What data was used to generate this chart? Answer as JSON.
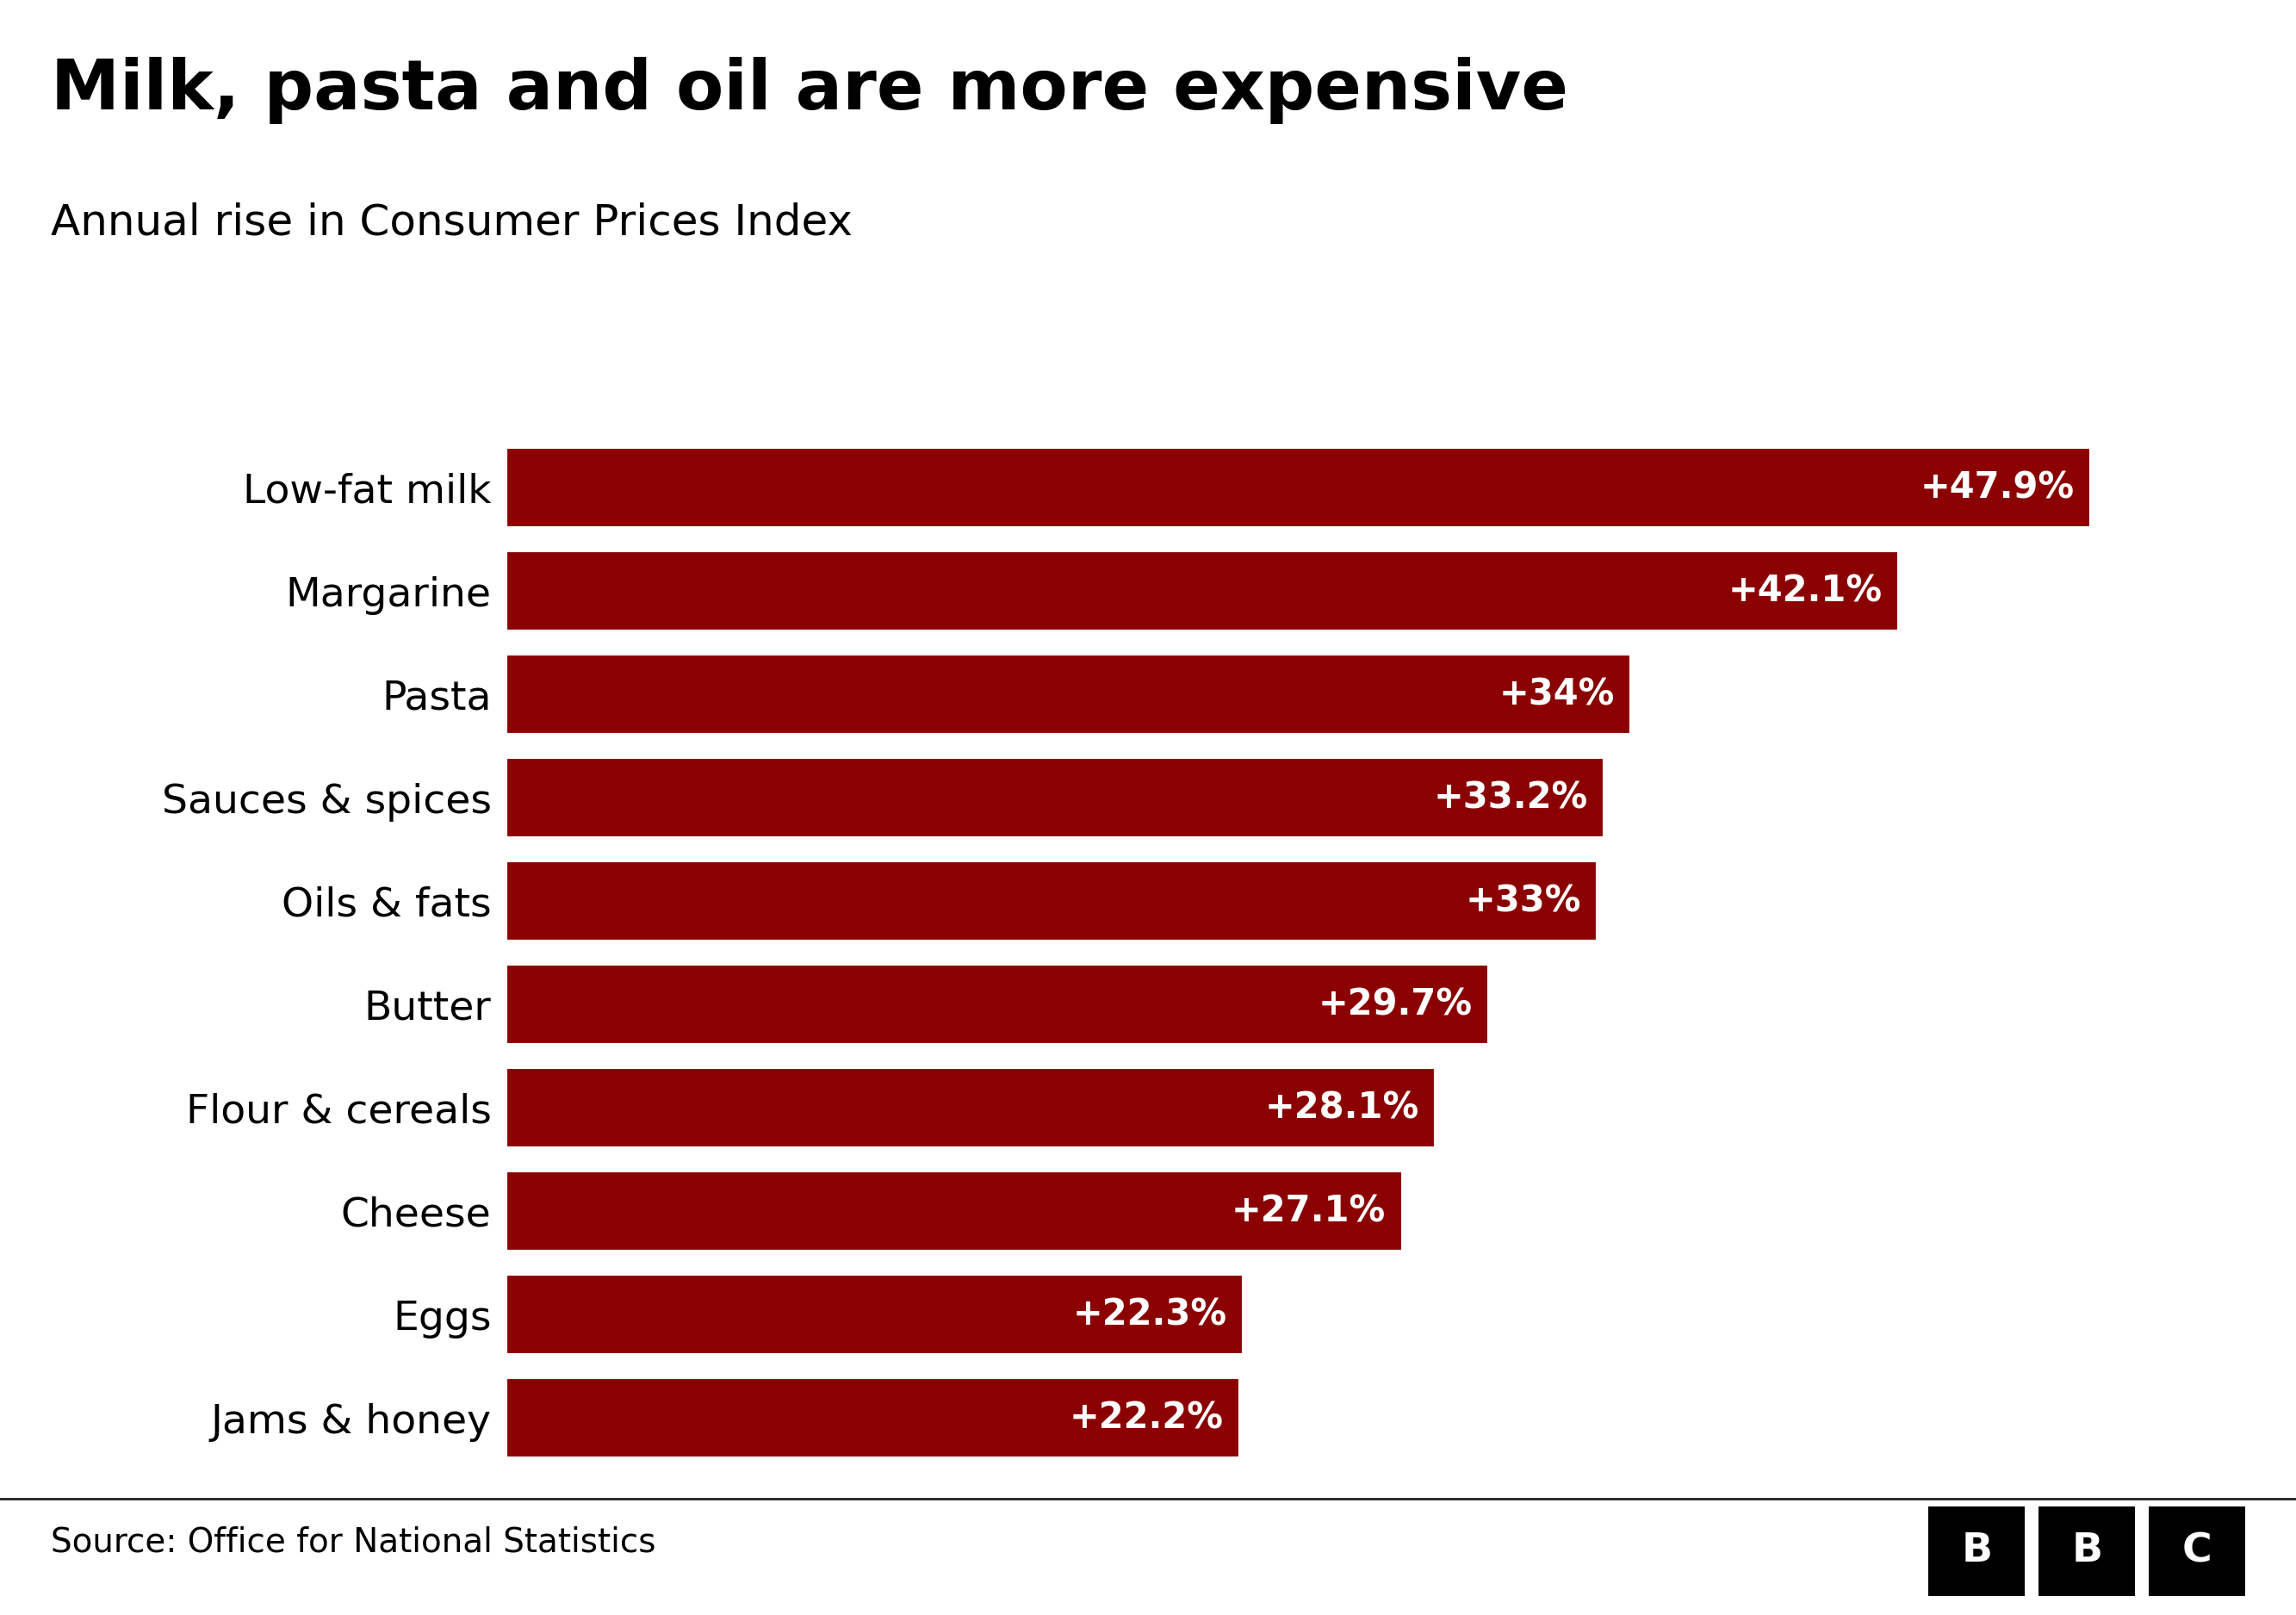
{
  "title": "Milk, pasta and oil are more expensive",
  "subtitle": "Annual rise in Consumer Prices Index",
  "source": "Source: Office for National Statistics",
  "categories": [
    "Jams & honey",
    "Eggs",
    "Cheese",
    "Flour & cereals",
    "Butter",
    "Oils & fats",
    "Sauces & spices",
    "Pasta",
    "Margarine",
    "Low-fat milk"
  ],
  "values": [
    22.2,
    22.3,
    27.1,
    28.1,
    29.7,
    33.0,
    33.2,
    34.0,
    42.1,
    47.9
  ],
  "labels": [
    "+22.2%",
    "+22.3%",
    "+27.1%",
    "+28.1%",
    "+29.7%",
    "+33%",
    "+33.2%",
    "+34%",
    "+42.1%",
    "+47.9%"
  ],
  "bar_color": "#8B0000",
  "background_color": "#FFFFFF",
  "title_color": "#000000",
  "subtitle_color": "#000000",
  "label_color": "#FFFFFF",
  "source_color": "#000000",
  "xlim": [
    0,
    52
  ],
  "title_fontsize": 58,
  "subtitle_fontsize": 36,
  "label_fontsize": 30,
  "category_fontsize": 34,
  "source_fontsize": 28,
  "bbc_box_color": "#000000",
  "bbc_text_color": "#FFFFFF"
}
